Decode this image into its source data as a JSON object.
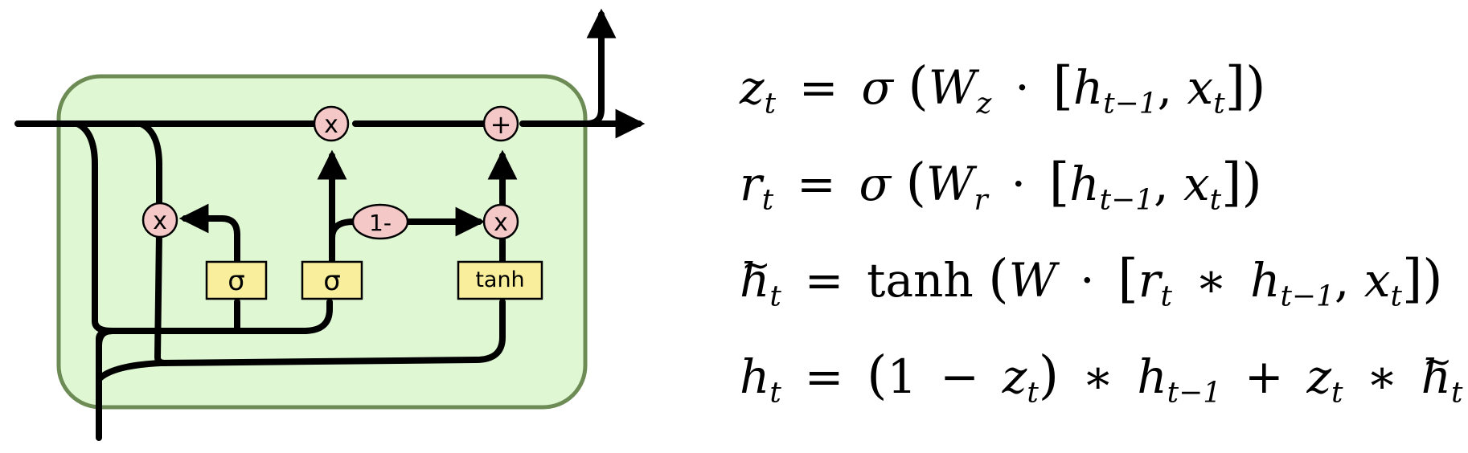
{
  "diagram": {
    "gate_labels": {
      "sigma_reset": "σ",
      "sigma_update": "σ",
      "tanh": "tanh",
      "one_minus": "1-",
      "mult_reset": "x",
      "mult_forget": "x",
      "mult_candidate": "x",
      "add": "+"
    },
    "colors": {
      "cell_fill": "#dff7d3",
      "cell_border": "#6d8c55",
      "layer_fill": "#f8ee9c",
      "pointwise_fill": "#f5c8c8"
    }
  },
  "equations": {
    "z": {
      "lhs": "z",
      "lhs_sub": "t",
      "eq": "=",
      "fn": "σ",
      "open": "(",
      "W": "W",
      "W_sub": "z",
      "dot": "·",
      "lb": "[",
      "h": "h",
      "h_sub": "t−1",
      "comma": ",",
      "x": "x",
      "x_sub": "t",
      "rb": "]",
      "close": ")"
    },
    "r": {
      "lhs": "r",
      "lhs_sub": "t",
      "eq": "=",
      "fn": "σ",
      "open": "(",
      "W": "W",
      "W_sub": "r",
      "dot": "·",
      "lb": "[",
      "h": "h",
      "h_sub": "t−1",
      "comma": ",",
      "x": "x",
      "x_sub": "t",
      "rb": "]",
      "close": ")"
    },
    "h_tilde": {
      "lhs": "h",
      "lhs_sub": "t",
      "eq": "=",
      "fn": "tanh",
      "open": "(",
      "W": "W",
      "dot": "·",
      "lb": "[",
      "r": "r",
      "r_sub": "t",
      "star": "∗",
      "h": "h",
      "h_sub": "t−1",
      "comma": ",",
      "x": "x",
      "x_sub": "t",
      "rb": "]",
      "close": ")"
    },
    "h": {
      "lhs": "h",
      "lhs_sub": "t",
      "eq": "=",
      "open": "(",
      "one": "1",
      "minus": "−",
      "z": "z",
      "z_sub": "t",
      "close": ")",
      "star": "∗",
      "h": "h",
      "h_sub": "t−1",
      "plus": "+",
      "z2": "z",
      "z2_sub": "t",
      "star2": "∗",
      "ht": "h",
      "ht_sub": "t"
    }
  }
}
